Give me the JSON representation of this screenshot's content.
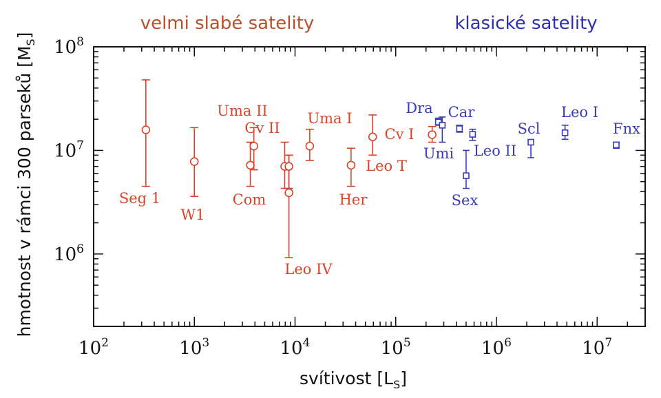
{
  "chart_data": {
    "type": "scatter",
    "title": "",
    "xlabel": "svítivost [L_S]",
    "ylabel": "hmotnost v rámci 300 parseků [M_S]",
    "xscale": "log",
    "yscale": "log",
    "xlim": [
      100,
      30000000
    ],
    "ylim": [
      200000,
      100000000
    ],
    "x_ticks": [
      {
        "value": 100,
        "base": "10",
        "exp": "2"
      },
      {
        "value": 1000,
        "base": "10",
        "exp": "3"
      },
      {
        "value": 10000,
        "base": "10",
        "exp": "4"
      },
      {
        "value": 100000,
        "base": "10",
        "exp": "5"
      },
      {
        "value": 1000000,
        "base": "10",
        "exp": "6"
      },
      {
        "value": 10000000,
        "base": "10",
        "exp": "7"
      }
    ],
    "y_ticks": [
      {
        "value": 1000000,
        "base": "10",
        "exp": "6"
      },
      {
        "value": 10000000,
        "base": "10",
        "exp": "7"
      },
      {
        "value": 100000000,
        "base": "10",
        "exp": "8"
      }
    ],
    "group_headers": {
      "faint": "velmi slabé satelity",
      "classical": "klasické satelity"
    },
    "colors": {
      "faint": "#d9432a",
      "classical": "#3a3ab8"
    },
    "series": [
      {
        "name": "velmi slabé satelity",
        "marker": "circle",
        "points": [
          {
            "label": "Seg 1",
            "x": 330,
            "y": 15800000,
            "ylo": 4500000,
            "yhi": 48000000
          },
          {
            "label": "W1",
            "x": 1000,
            "y": 7800000,
            "ylo": 3600000,
            "yhi": 16600000
          },
          {
            "label": "Com",
            "x": 3600,
            "y": 7200000,
            "ylo": 4500000,
            "yhi": 12000000
          },
          {
            "label": "Cv II",
            "x": 3900,
            "y": 11000000,
            "ylo": 6500000,
            "yhi": 16600000
          },
          {
            "label": "",
            "x": 7900,
            "y": 7000000,
            "ylo": 4300000,
            "yhi": 12000000
          },
          {
            "label": "Leo IV",
            "x": 8700,
            "y": 3900000,
            "ylo": 920000,
            "yhi": 9000000
          },
          {
            "label": "Uma II",
            "x": 8700,
            "y": 7000000,
            "ylo": 4300000,
            "yhi": 9000000
          },
          {
            "label": "Uma I",
            "x": 14000,
            "y": 11000000,
            "ylo": 8000000,
            "yhi": 16000000
          },
          {
            "label": "Her",
            "x": 36000,
            "y": 7200000,
            "ylo": 4500000,
            "yhi": 10500000
          },
          {
            "label": "Leo T",
            "x": 59000,
            "y": 13500000,
            "ylo": 9000000,
            "yhi": 22000000
          },
          {
            "label": "Cv I",
            "x": 230000,
            "y": 14200000,
            "ylo": 12000000,
            "yhi": 17000000
          }
        ]
      },
      {
        "name": "klasické satelity",
        "marker": "square",
        "points": [
          {
            "label": "Dra",
            "x": 265000,
            "y": 18800000,
            "ylo": 17500000,
            "yhi": 20500000
          },
          {
            "label": "Umi",
            "x": 290000,
            "y": 17500000,
            "ylo": 12000000,
            "yhi": 21000000
          },
          {
            "label": "Car",
            "x": 430000,
            "y": 16200000,
            "ylo": 15000000,
            "yhi": 17500000
          },
          {
            "label": "Sex",
            "x": 500000,
            "y": 5700000,
            "ylo": 4300000,
            "yhi": 10000000
          },
          {
            "label": "Leo II",
            "x": 580000,
            "y": 14300000,
            "ylo": 12500000,
            "yhi": 16000000
          },
          {
            "label": "Scl",
            "x": 2200000,
            "y": 12000000,
            "ylo": 8500000,
            "yhi": 12600000
          },
          {
            "label": "Leo I",
            "x": 4800000,
            "y": 14800000,
            "ylo": 12800000,
            "yhi": 17500000
          },
          {
            "label": "Fnx",
            "x": 15500000,
            "y": 11300000,
            "ylo": 10500000,
            "yhi": 12000000
          }
        ]
      }
    ]
  }
}
